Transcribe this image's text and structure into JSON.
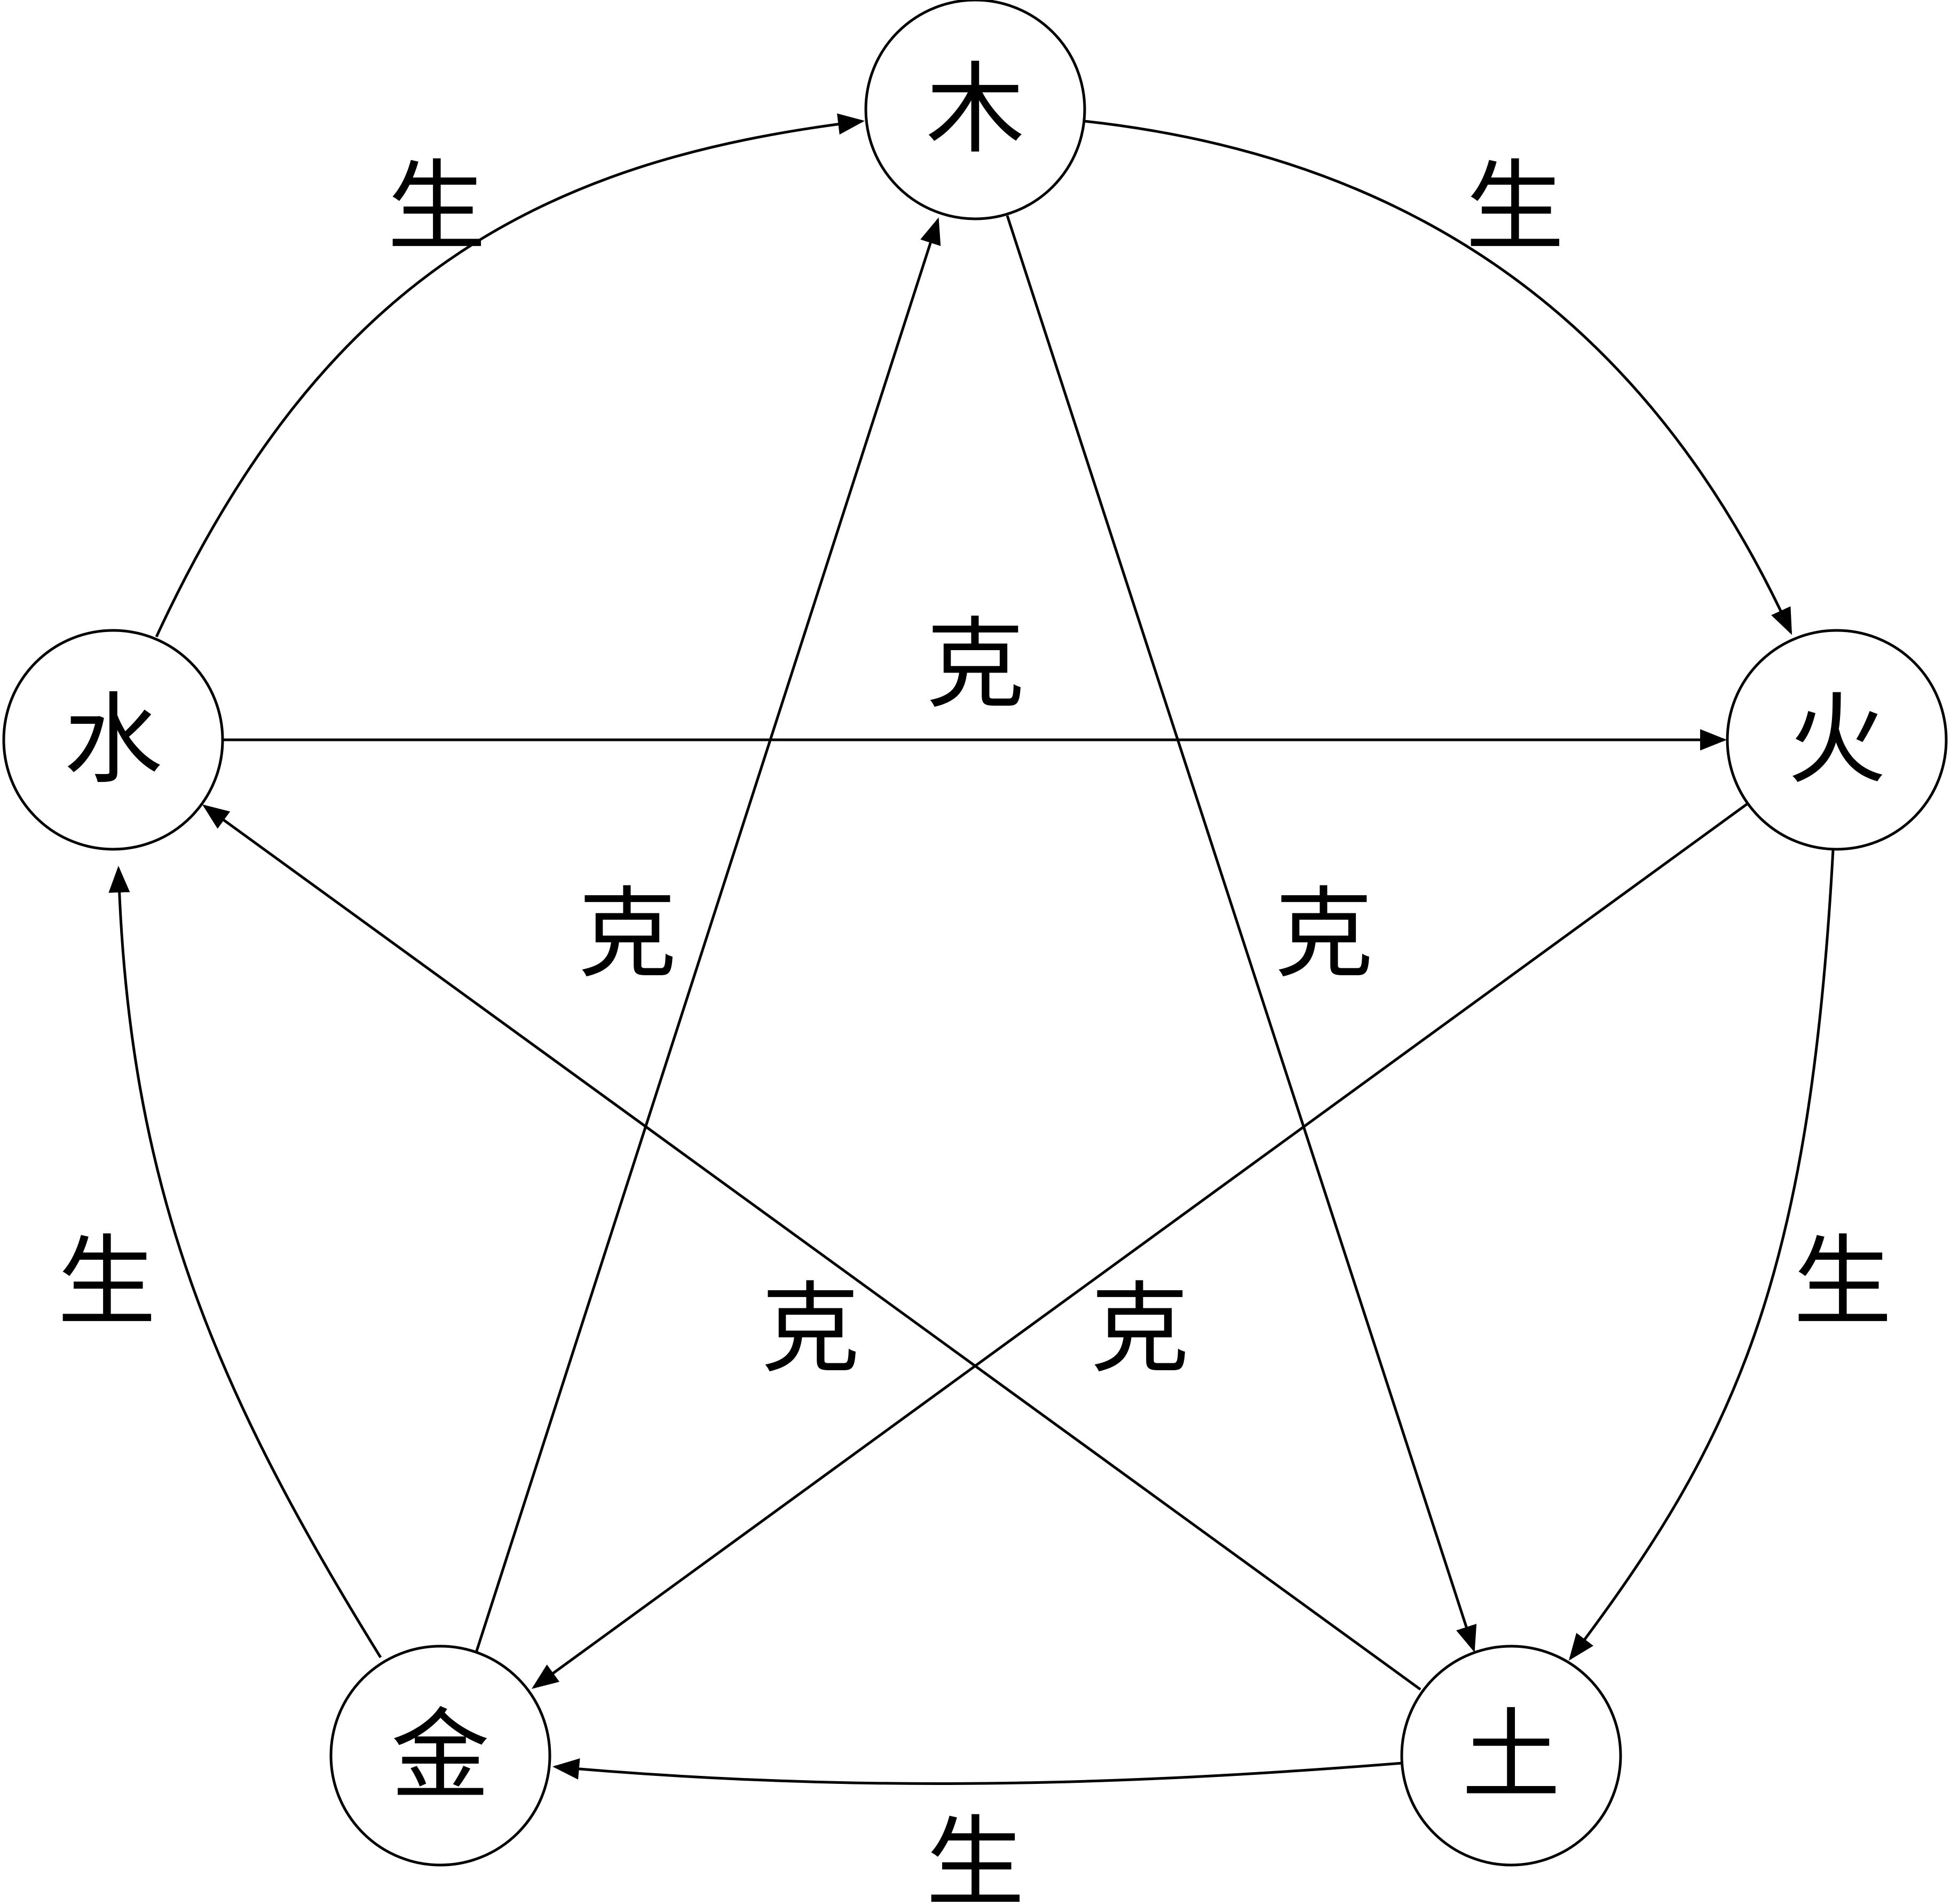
{
  "nodes": {
    "wood": "木",
    "fire": "火",
    "earth": "土",
    "metal": "金",
    "water": "水"
  },
  "labels": {
    "generate": "生",
    "overcome": "克"
  },
  "colors": {
    "stroke": "#000000",
    "background": "#ffffff"
  }
}
